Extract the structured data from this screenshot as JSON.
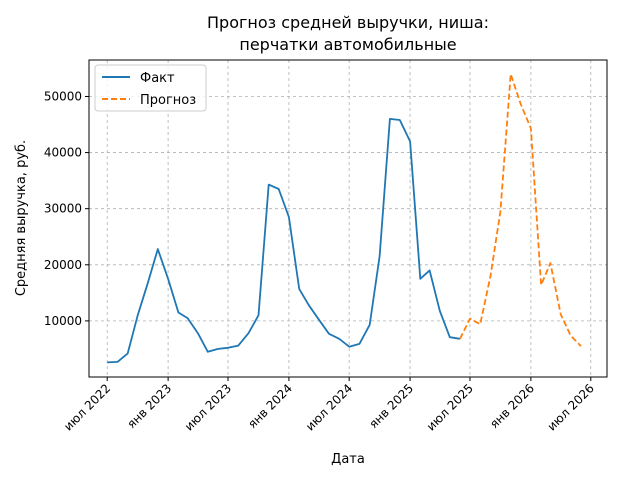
{
  "chart_data": {
    "type": "line",
    "title_line1": "Прогноз средней выручки, ниша:",
    "title_line2": "перчатки автомобильные",
    "xlabel": "Дата",
    "ylabel": "Средняя выручка, руб.",
    "x_ticks": [
      "июл 2022",
      "янв 2023",
      "июл 2023",
      "янв 2024",
      "июл 2024",
      "янв 2025",
      "июл 2025",
      "янв 2026",
      "июл 2026"
    ],
    "y_ticks": [
      10000,
      20000,
      30000,
      40000,
      50000
    ],
    "xlim": [
      "2022-05-07",
      "2026-08-19"
    ],
    "ylim": [
      0,
      56500
    ],
    "grid": true,
    "legend_position": "top-left",
    "colors": {
      "fact": "#1f77b4",
      "forecast": "#ff7f0e"
    },
    "series": [
      {
        "name": "Факт",
        "style": "solid",
        "x": [
          "2022-07-01",
          "2022-08-01",
          "2022-09-01",
          "2022-10-01",
          "2022-11-01",
          "2022-12-01",
          "2023-01-01",
          "2023-02-01",
          "2023-03-01",
          "2023-04-01",
          "2023-05-01",
          "2023-06-01",
          "2023-07-01",
          "2023-08-01",
          "2023-09-01",
          "2023-10-01",
          "2023-11-01",
          "2023-12-01",
          "2024-01-01",
          "2024-02-01",
          "2024-03-01",
          "2024-04-01",
          "2024-05-01",
          "2024-06-01",
          "2024-07-01",
          "2024-08-01",
          "2024-09-01",
          "2024-10-01",
          "2024-11-01",
          "2024-12-01",
          "2025-01-01",
          "2025-02-01",
          "2025-03-01",
          "2025-04-01",
          "2025-05-01",
          "2025-06-01"
        ],
        "values": [
          2600,
          2700,
          4200,
          11000,
          16800,
          22800,
          17500,
          11500,
          10500,
          7800,
          4500,
          5000,
          5200,
          5600,
          7800,
          11000,
          34300,
          33500,
          28500,
          15700,
          12800,
          10200,
          7700,
          6800,
          5400,
          5900,
          9300,
          21500,
          46000,
          45800,
          42000,
          17500,
          19000,
          11800,
          7100,
          6800
        ]
      },
      {
        "name": "Прогноз",
        "style": "dashed",
        "x": [
          "2025-06-01",
          "2025-07-01",
          "2025-08-01",
          "2025-09-01",
          "2025-10-01",
          "2025-11-01",
          "2025-12-01",
          "2026-01-01",
          "2026-02-01",
          "2026-03-01",
          "2026-04-01",
          "2026-05-01",
          "2026-06-01"
        ],
        "values": [
          6800,
          10400,
          9400,
          18000,
          29500,
          54000,
          48700,
          44300,
          16400,
          20300,
          11200,
          7400,
          5500
        ]
      }
    ]
  }
}
